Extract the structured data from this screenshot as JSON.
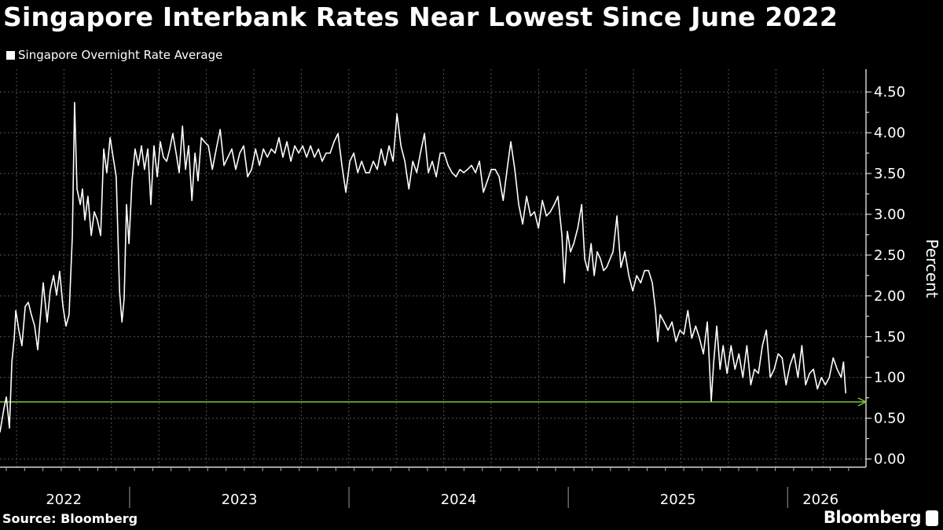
{
  "chart_data": {
    "type": "line",
    "title": "Singapore Interbank Rates Near Lowest Since June 2022",
    "ylabel": "Percent",
    "xlabel": "",
    "xlim": [
      2022.409,
      2026.3
    ],
    "ylim": [
      -0.1,
      4.78
    ],
    "yticks": [
      0,
      0.5,
      1,
      1.5,
      2,
      2.5,
      3,
      3.5,
      4,
      4.5
    ],
    "ytick_labels": [
      "0.00",
      "0.50",
      "1.00",
      "1.50",
      "2.00",
      "2.50",
      "3.00",
      "3.50",
      "4.00",
      "4.50"
    ],
    "xtick_labels": [
      {
        "label": "2022",
        "center": 2022.7
      },
      {
        "label": "2023",
        "center": 2023.5
      },
      {
        "label": "2024",
        "center": 2024.5
      },
      {
        "label": "2025",
        "center": 2025.5
      },
      {
        "label": "2026",
        "center": 2026.15
      }
    ],
    "year_dividers": [
      2023,
      2024,
      2025,
      2026
    ],
    "grid": true,
    "legend_position": "top-left",
    "reference_line": {
      "value": 0.7,
      "color": "#7dc243"
    },
    "series": [
      {
        "name": "Singapore Overnight Rate Average",
        "color": "#ffffff",
        "points": [
          [
            2022.409,
            0.33
          ],
          [
            2022.427,
            0.62
          ],
          [
            2022.438,
            0.76
          ],
          [
            2022.452,
            0.38
          ],
          [
            2022.463,
            1.19
          ],
          [
            2022.474,
            1.48
          ],
          [
            2022.481,
            1.82
          ],
          [
            2022.495,
            1.58
          ],
          [
            2022.509,
            1.39
          ],
          [
            2022.524,
            1.87
          ],
          [
            2022.538,
            1.92
          ],
          [
            2022.552,
            1.77
          ],
          [
            2022.567,
            1.63
          ],
          [
            2022.581,
            1.34
          ],
          [
            2022.588,
            1.58
          ],
          [
            2022.606,
            2.16
          ],
          [
            2022.624,
            1.68
          ],
          [
            2022.638,
            2.06
          ],
          [
            2022.653,
            2.25
          ],
          [
            2022.667,
            2.01
          ],
          [
            2022.681,
            2.3
          ],
          [
            2022.696,
            1.87
          ],
          [
            2022.71,
            1.63
          ],
          [
            2022.724,
            1.77
          ],
          [
            2022.739,
            2.74
          ],
          [
            2022.749,
            4.37
          ],
          [
            2022.76,
            3.31
          ],
          [
            2022.775,
            3.12
          ],
          [
            2022.785,
            3.31
          ],
          [
            2022.796,
            2.93
          ],
          [
            2022.81,
            3.22
          ],
          [
            2022.825,
            2.74
          ],
          [
            2022.839,
            3.03
          ],
          [
            2022.853,
            2.93
          ],
          [
            2022.868,
            2.74
          ],
          [
            2022.882,
            3.8
          ],
          [
            2022.896,
            3.51
          ],
          [
            2022.911,
            3.94
          ],
          [
            2022.925,
            3.7
          ],
          [
            2022.939,
            3.46
          ],
          [
            2022.954,
            2.06
          ],
          [
            2022.965,
            1.68
          ],
          [
            2022.975,
            1.97
          ],
          [
            2022.986,
            3.12
          ],
          [
            2022.997,
            2.64
          ],
          [
            2023.011,
            3.41
          ],
          [
            2023.025,
            3.8
          ],
          [
            2023.04,
            3.6
          ],
          [
            2023.054,
            3.84
          ],
          [
            2023.068,
            3.55
          ],
          [
            2023.083,
            3.8
          ],
          [
            2023.097,
            3.12
          ],
          [
            2023.111,
            3.84
          ],
          [
            2023.126,
            3.46
          ],
          [
            2023.14,
            3.89
          ],
          [
            2023.154,
            3.7
          ],
          [
            2023.169,
            3.65
          ],
          [
            2023.183,
            3.8
          ],
          [
            2023.197,
            3.99
          ],
          [
            2023.212,
            3.75
          ],
          [
            2023.226,
            3.51
          ],
          [
            2023.241,
            4.08
          ],
          [
            2023.255,
            3.55
          ],
          [
            2023.269,
            3.84
          ],
          [
            2023.284,
            3.17
          ],
          [
            2023.298,
            3.75
          ],
          [
            2023.312,
            3.41
          ],
          [
            2023.327,
            3.94
          ],
          [
            2023.341,
            3.89
          ],
          [
            2023.359,
            3.84
          ],
          [
            2023.377,
            3.55
          ],
          [
            2023.395,
            3.8
          ],
          [
            2023.413,
            4.04
          ],
          [
            2023.43,
            3.6
          ],
          [
            2023.448,
            3.7
          ],
          [
            2023.466,
            3.8
          ],
          [
            2023.484,
            3.55
          ],
          [
            2023.502,
            3.75
          ],
          [
            2023.52,
            3.84
          ],
          [
            2023.538,
            3.46
          ],
          [
            2023.556,
            3.55
          ],
          [
            2023.574,
            3.8
          ],
          [
            2023.592,
            3.6
          ],
          [
            2023.61,
            3.8
          ],
          [
            2023.628,
            3.7
          ],
          [
            2023.646,
            3.8
          ],
          [
            2023.663,
            3.75
          ],
          [
            2023.681,
            3.94
          ],
          [
            2023.699,
            3.7
          ],
          [
            2023.717,
            3.89
          ],
          [
            2023.735,
            3.65
          ],
          [
            2023.753,
            3.84
          ],
          [
            2023.771,
            3.75
          ],
          [
            2023.789,
            3.84
          ],
          [
            2023.807,
            3.7
          ],
          [
            2023.825,
            3.84
          ],
          [
            2023.843,
            3.7
          ],
          [
            2023.861,
            3.8
          ],
          [
            2023.878,
            3.65
          ],
          [
            2023.896,
            3.75
          ],
          [
            2023.914,
            3.75
          ],
          [
            2023.932,
            3.89
          ],
          [
            2023.95,
            3.99
          ],
          [
            2023.968,
            3.6
          ],
          [
            2023.986,
            3.27
          ],
          [
            2024.004,
            3.65
          ],
          [
            2024.022,
            3.75
          ],
          [
            2024.04,
            3.51
          ],
          [
            2024.058,
            3.65
          ],
          [
            2024.076,
            3.51
          ],
          [
            2024.093,
            3.51
          ],
          [
            2024.111,
            3.65
          ],
          [
            2024.129,
            3.55
          ],
          [
            2024.147,
            3.8
          ],
          [
            2024.165,
            3.6
          ],
          [
            2024.183,
            3.84
          ],
          [
            2024.201,
            3.65
          ],
          [
            2024.219,
            4.23
          ],
          [
            2024.237,
            3.84
          ],
          [
            2024.255,
            3.65
          ],
          [
            2024.273,
            3.31
          ],
          [
            2024.291,
            3.65
          ],
          [
            2024.309,
            3.51
          ],
          [
            2024.326,
            3.75
          ],
          [
            2024.344,
            3.99
          ],
          [
            2024.362,
            3.51
          ],
          [
            2024.38,
            3.65
          ],
          [
            2024.398,
            3.46
          ],
          [
            2024.416,
            3.75
          ],
          [
            2024.434,
            3.75
          ],
          [
            2024.452,
            3.6
          ],
          [
            2024.47,
            3.51
          ],
          [
            2024.488,
            3.46
          ],
          [
            2024.506,
            3.55
          ],
          [
            2024.523,
            3.51
          ],
          [
            2024.541,
            3.55
          ],
          [
            2024.559,
            3.6
          ],
          [
            2024.577,
            3.51
          ],
          [
            2024.595,
            3.65
          ],
          [
            2024.613,
            3.27
          ],
          [
            2024.631,
            3.41
          ],
          [
            2024.649,
            3.55
          ],
          [
            2024.667,
            3.55
          ],
          [
            2024.685,
            3.46
          ],
          [
            2024.703,
            3.17
          ],
          [
            2024.721,
            3.55
          ],
          [
            2024.738,
            3.89
          ],
          [
            2024.756,
            3.55
          ],
          [
            2024.774,
            3.12
          ],
          [
            2024.792,
            2.88
          ],
          [
            2024.81,
            3.22
          ],
          [
            2024.828,
            2.98
          ],
          [
            2024.846,
            3.03
          ],
          [
            2024.864,
            2.83
          ],
          [
            2024.882,
            3.17
          ],
          [
            2024.9,
            2.98
          ],
          [
            2024.918,
            3.03
          ],
          [
            2024.936,
            3.12
          ],
          [
            2024.953,
            3.22
          ],
          [
            2024.971,
            2.74
          ],
          [
            2024.982,
            2.16
          ],
          [
            2024.996,
            2.79
          ],
          [
            2025.01,
            2.54
          ],
          [
            2025.025,
            2.64
          ],
          [
            2025.043,
            2.83
          ],
          [
            2025.061,
            3.12
          ],
          [
            2025.075,
            2.45
          ],
          [
            2025.089,
            2.31
          ],
          [
            2025.104,
            2.64
          ],
          [
            2025.118,
            2.25
          ],
          [
            2025.132,
            2.54
          ],
          [
            2025.147,
            2.45
          ],
          [
            2025.161,
            2.31
          ],
          [
            2025.175,
            2.35
          ],
          [
            2025.19,
            2.45
          ],
          [
            2025.204,
            2.54
          ],
          [
            2025.222,
            2.98
          ],
          [
            2025.24,
            2.35
          ],
          [
            2025.258,
            2.54
          ],
          [
            2025.276,
            2.25
          ],
          [
            2025.294,
            2.06
          ],
          [
            2025.312,
            2.25
          ],
          [
            2025.33,
            2.16
          ],
          [
            2025.348,
            2.31
          ],
          [
            2025.366,
            2.31
          ],
          [
            2025.383,
            2.16
          ],
          [
            2025.398,
            1.82
          ],
          [
            2025.408,
            1.44
          ],
          [
            2025.419,
            1.77
          ],
          [
            2025.437,
            1.68
          ],
          [
            2025.455,
            1.58
          ],
          [
            2025.473,
            1.68
          ],
          [
            2025.491,
            1.44
          ],
          [
            2025.509,
            1.58
          ],
          [
            2025.527,
            1.53
          ],
          [
            2025.545,
            1.82
          ],
          [
            2025.563,
            1.48
          ],
          [
            2025.581,
            1.63
          ],
          [
            2025.598,
            1.48
          ],
          [
            2025.616,
            1.29
          ],
          [
            2025.634,
            1.68
          ],
          [
            2025.652,
            0.71
          ],
          [
            2025.663,
            1.19
          ],
          [
            2025.677,
            1.63
          ],
          [
            2025.692,
            1.1
          ],
          [
            2025.706,
            1.39
          ],
          [
            2025.724,
            1.05
          ],
          [
            2025.742,
            1.39
          ],
          [
            2025.76,
            1.1
          ],
          [
            2025.778,
            1.29
          ],
          [
            2025.796,
            1.0
          ],
          [
            2025.814,
            1.39
          ],
          [
            2025.832,
            0.91
          ],
          [
            2025.849,
            1.1
          ],
          [
            2025.867,
            1.05
          ],
          [
            2025.885,
            1.39
          ],
          [
            2025.903,
            1.58
          ],
          [
            2025.921,
            1.0
          ],
          [
            2025.939,
            1.1
          ],
          [
            2025.957,
            1.29
          ],
          [
            2025.975,
            1.24
          ],
          [
            2025.993,
            0.91
          ],
          [
            2026.011,
            1.15
          ],
          [
            2026.029,
            1.29
          ],
          [
            2026.047,
            1.0
          ],
          [
            2026.065,
            1.39
          ],
          [
            2026.082,
            0.91
          ],
          [
            2026.1,
            1.05
          ],
          [
            2026.118,
            1.1
          ],
          [
            2026.136,
            0.86
          ],
          [
            2026.154,
            1.0
          ],
          [
            2026.172,
            0.91
          ],
          [
            2026.19,
            1.0
          ],
          [
            2026.208,
            1.24
          ],
          [
            2026.226,
            1.1
          ],
          [
            2026.244,
            1.0
          ],
          [
            2026.255,
            1.19
          ],
          [
            2026.265,
            0.81
          ]
        ]
      }
    ]
  },
  "source": "Source: Bloomberg",
  "brand": "Bloomberg"
}
